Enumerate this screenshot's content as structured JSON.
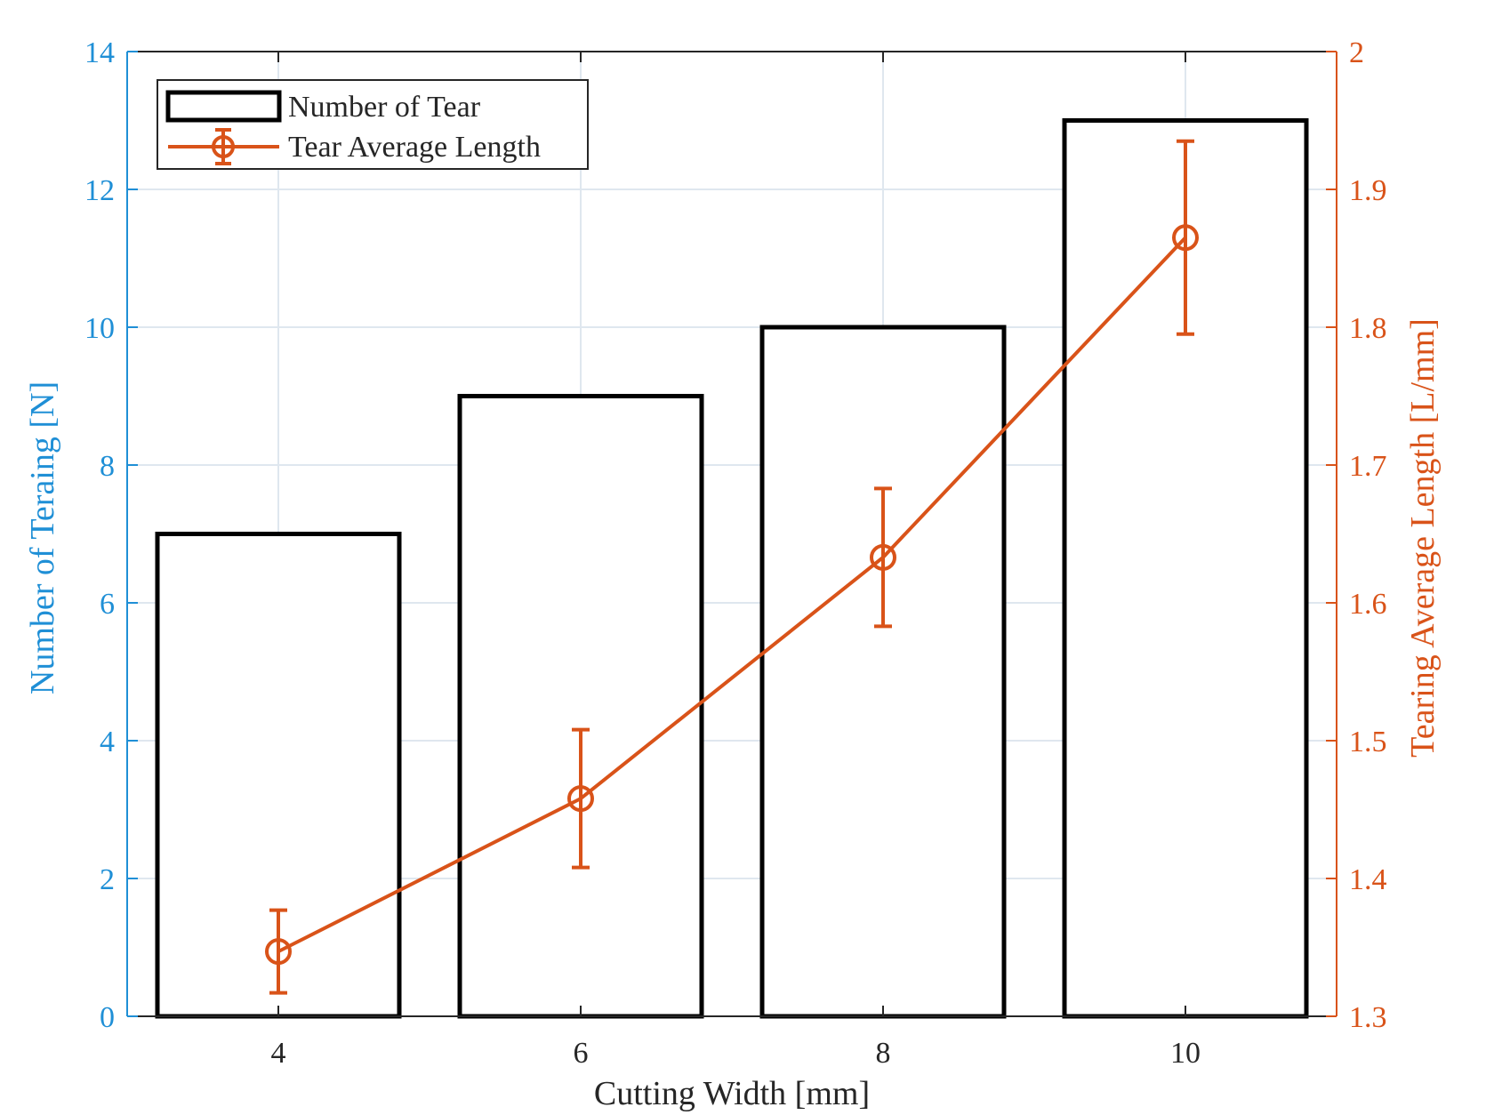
{
  "chart_data": {
    "type": "bar+line",
    "title": "",
    "xlabel": "Cutting Width [mm]",
    "ylabel_left": "Number of Teraing [N]",
    "ylabel_right": "Tearing Average Length [L/mm]",
    "x_ticks": [
      "4",
      "6",
      "8",
      "10"
    ],
    "categories": [
      4,
      6,
      8,
      10
    ],
    "xlim": [
      3,
      11
    ],
    "ylim_left": [
      0,
      14
    ],
    "ylim_right": [
      1.3,
      2.0
    ],
    "y_left_ticks": [
      0,
      2,
      4,
      6,
      8,
      10,
      12,
      14
    ],
    "y_right_ticks": [
      "1.3",
      "1.4",
      "1.5",
      "1.6",
      "1.7",
      "1.8",
      "1.9",
      "2"
    ],
    "grid": true,
    "legend_position": "top-left",
    "series": [
      {
        "name": "Number of Tear",
        "type": "bar",
        "axis": "left",
        "values": [
          7,
          9,
          10,
          13
        ]
      },
      {
        "name": "Tear Average Length",
        "type": "line-errorbar",
        "axis": "right",
        "values": [
          1.347,
          1.458,
          1.633,
          1.865
        ],
        "error_low": [
          1.317,
          1.408,
          1.583,
          1.795
        ],
        "error_high": [
          1.377,
          1.508,
          1.683,
          1.935
        ]
      }
    ],
    "colors": {
      "left_axis": "#1f8fd6",
      "right_axis": "#d95319",
      "bar_edge": "#000000",
      "line": "#d95319",
      "grid": "#dfe7ef",
      "axis_box": "#262626"
    }
  }
}
